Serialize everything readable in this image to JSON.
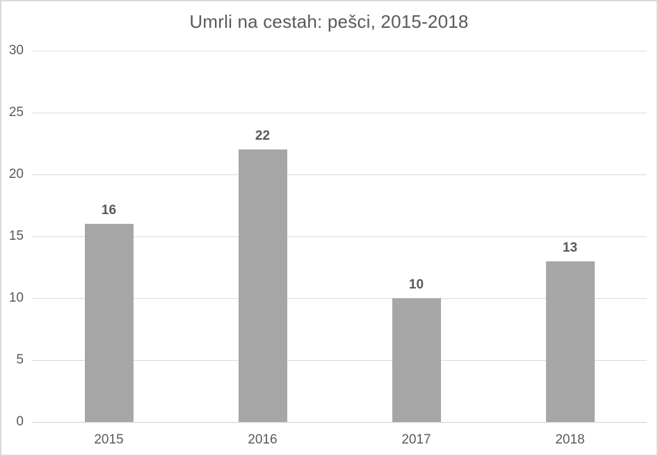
{
  "chart_data": {
    "type": "bar",
    "title": "Umrli na cestah: pešci, 2015-2018",
    "categories": [
      "2015",
      "2016",
      "2017",
      "2018"
    ],
    "values": [
      16,
      22,
      10,
      13
    ],
    "data_labels": [
      "16",
      "22",
      "10",
      "13"
    ],
    "y_tick_values": [
      0,
      5,
      10,
      15,
      20,
      25,
      30
    ],
    "y_tick_labels": [
      "0",
      "5",
      "10",
      "15",
      "20",
      "25",
      "30"
    ],
    "ylim": [
      0,
      30
    ],
    "xlabel": "",
    "ylabel": "",
    "grid": "horizontal",
    "legend": "none",
    "colors": {
      "bar_fill": "#a6a6a6",
      "gridline": "#d9d9d9",
      "axis_line": "#cfcfcf",
      "text": "#595959",
      "background": "#ffffff",
      "border": "#d9d9d9"
    }
  }
}
